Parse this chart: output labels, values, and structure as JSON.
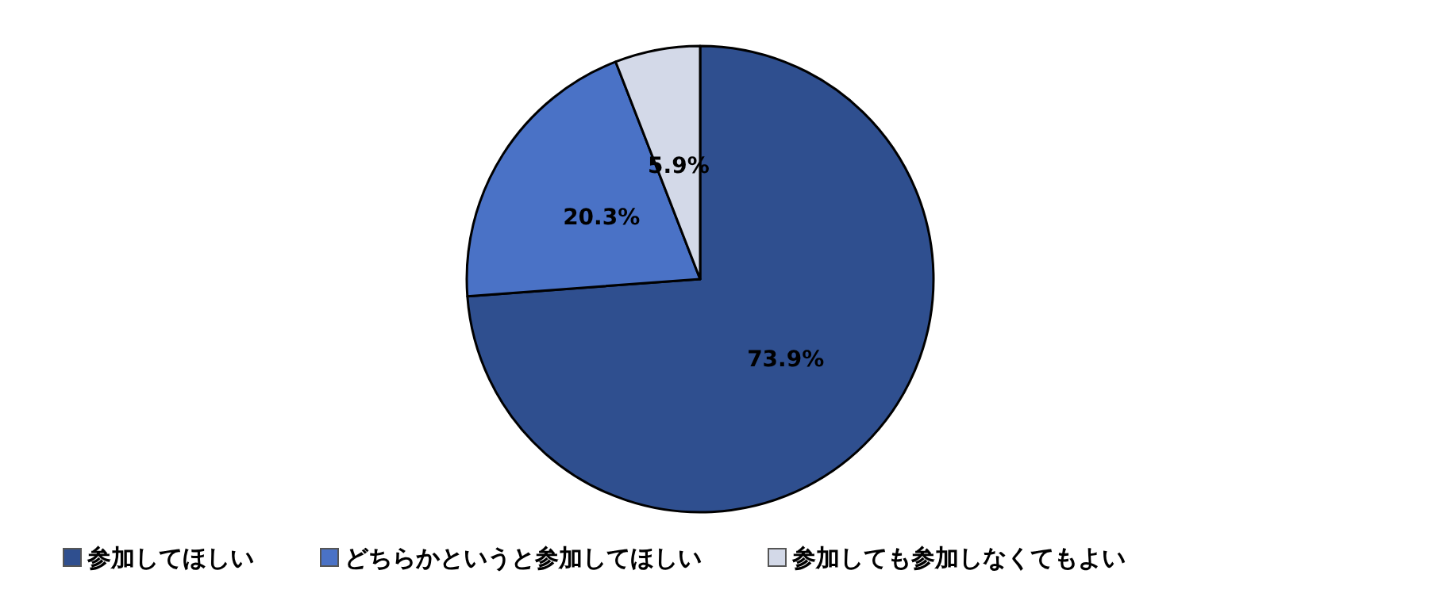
{
  "chart_data": {
    "type": "pie",
    "categories": [
      "参加してほしい",
      "どちらかというと参加してほしい",
      "参加しても参加しなくてもよい"
    ],
    "values": [
      73.9,
      20.3,
      5.9
    ],
    "value_labels": [
      "73.9%",
      "20.3%",
      "5.9%"
    ],
    "colors": [
      "#2f4f8f",
      "#4a72c6",
      "#d3d9e8"
    ],
    "legend": "bottom"
  }
}
